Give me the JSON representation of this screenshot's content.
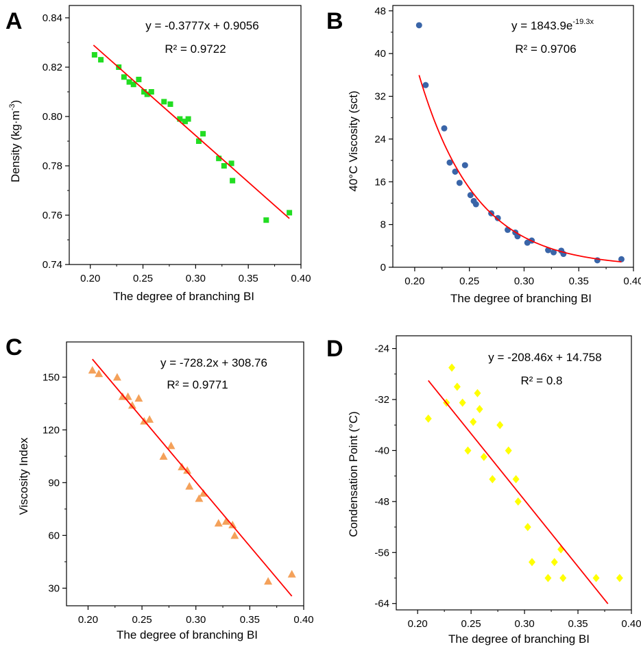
{
  "chart_data": [
    {
      "panel": "A",
      "type": "scatter",
      "xlabel": "The degree of branching BI",
      "ylabel_main": "Density (kg·m",
      "ylabel_sup": "-3",
      "ylabel_close": ")",
      "xlim": [
        0.18,
        0.4
      ],
      "ylim": [
        0.74,
        0.845
      ],
      "xticks": [
        0.2,
        0.25,
        0.3,
        0.35,
        0.4
      ],
      "xtick_labels": [
        "0.20",
        "0.25",
        "0.30",
        "0.35",
        "0.40"
      ],
      "yticks": [
        0.74,
        0.76,
        0.78,
        0.8,
        0.82,
        0.84
      ],
      "ytick_labels": [
        "0.74",
        "0.76",
        "0.78",
        "0.80",
        "0.82",
        "0.84"
      ],
      "marker": "square",
      "color": "#22dd22",
      "fit_color": "#ff0000",
      "equation": "y = -0.3777x + 0.9056",
      "r2": "R² = 0.9722",
      "fit": {
        "kind": "linear",
        "slope": -0.3777,
        "intercept": 0.9056,
        "x_range": [
          0.203,
          0.389
        ]
      },
      "points": [
        {
          "x": 0.204,
          "y": 0.825
        },
        {
          "x": 0.21,
          "y": 0.823
        },
        {
          "x": 0.227,
          "y": 0.82
        },
        {
          "x": 0.232,
          "y": 0.816
        },
        {
          "x": 0.237,
          "y": 0.814
        },
        {
          "x": 0.241,
          "y": 0.813
        },
        {
          "x": 0.246,
          "y": 0.815
        },
        {
          "x": 0.251,
          "y": 0.81
        },
        {
          "x": 0.254,
          "y": 0.809
        },
        {
          "x": 0.258,
          "y": 0.81
        },
        {
          "x": 0.27,
          "y": 0.806
        },
        {
          "x": 0.276,
          "y": 0.805
        },
        {
          "x": 0.285,
          "y": 0.799
        },
        {
          "x": 0.29,
          "y": 0.798
        },
        {
          "x": 0.293,
          "y": 0.799
        },
        {
          "x": 0.303,
          "y": 0.79
        },
        {
          "x": 0.307,
          "y": 0.793
        },
        {
          "x": 0.322,
          "y": 0.783
        },
        {
          "x": 0.327,
          "y": 0.78
        },
        {
          "x": 0.334,
          "y": 0.781
        },
        {
          "x": 0.335,
          "y": 0.774
        },
        {
          "x": 0.367,
          "y": 0.758
        },
        {
          "x": 0.389,
          "y": 0.761
        }
      ]
    },
    {
      "panel": "B",
      "type": "scatter",
      "xlabel": "The degree of branching BI",
      "ylabel_main": "40°C Viscosity (sct)",
      "xlim": [
        0.18,
        0.4
      ],
      "ylim": [
        0,
        49
      ],
      "xticks": [
        0.2,
        0.25,
        0.3,
        0.35,
        0.4
      ],
      "xtick_labels": [
        "0.20",
        "0.25",
        "0.30",
        "0.35",
        "0.40"
      ],
      "yticks": [
        0,
        8,
        16,
        24,
        32,
        40,
        48
      ],
      "ytick_labels": [
        "0",
        "8",
        "16",
        "24",
        "32",
        "40",
        "48"
      ],
      "marker": "circle",
      "color": "#3a65a8",
      "fit_color": "#ff0000",
      "equation": "y = 1843.9e",
      "equation_sup": "-19.3x",
      "r2": "R² = 0.9706",
      "fit": {
        "kind": "exp",
        "a": 1843.9,
        "b": -19.3,
        "x_range": [
          0.204,
          0.389
        ]
      },
      "points": [
        {
          "x": 0.204,
          "y": 45.3
        },
        {
          "x": 0.21,
          "y": 34.1
        },
        {
          "x": 0.227,
          "y": 26.0
        },
        {
          "x": 0.232,
          "y": 19.6
        },
        {
          "x": 0.237,
          "y": 17.9
        },
        {
          "x": 0.241,
          "y": 15.8
        },
        {
          "x": 0.246,
          "y": 19.1
        },
        {
          "x": 0.251,
          "y": 13.5
        },
        {
          "x": 0.254,
          "y": 12.4
        },
        {
          "x": 0.256,
          "y": 11.8
        },
        {
          "x": 0.27,
          "y": 10.1
        },
        {
          "x": 0.276,
          "y": 9.2
        },
        {
          "x": 0.285,
          "y": 7.0
        },
        {
          "x": 0.292,
          "y": 6.5
        },
        {
          "x": 0.294,
          "y": 5.8
        },
        {
          "x": 0.303,
          "y": 4.6
        },
        {
          "x": 0.307,
          "y": 5.0
        },
        {
          "x": 0.322,
          "y": 3.2
        },
        {
          "x": 0.327,
          "y": 2.8
        },
        {
          "x": 0.334,
          "y": 3.1
        },
        {
          "x": 0.336,
          "y": 2.5
        },
        {
          "x": 0.367,
          "y": 1.3
        },
        {
          "x": 0.389,
          "y": 1.5
        }
      ]
    },
    {
      "panel": "C",
      "type": "scatter",
      "xlabel": "The degree of branching BI",
      "ylabel_main": "Viscosity Index",
      "xlim": [
        0.18,
        0.4
      ],
      "ylim": [
        20,
        170
      ],
      "xticks": [
        0.2,
        0.25,
        0.3,
        0.35,
        0.4
      ],
      "xtick_labels": [
        "0.20",
        "0.25",
        "0.30",
        "0.35",
        "0.40"
      ],
      "yticks": [
        30,
        60,
        90,
        120,
        150
      ],
      "ytick_labels": [
        "30",
        "60",
        "90",
        "120",
        "150"
      ],
      "marker": "triangle",
      "color": "#f4a15a",
      "fit_color": "#ff0000",
      "equation": "y = -728.2x + 308.76",
      "r2": "R² = 0.9771",
      "fit": {
        "kind": "linear",
        "slope": -728.2,
        "intercept": 308.76,
        "x_range": [
          0.204,
          0.389
        ]
      },
      "points": [
        {
          "x": 0.204,
          "y": 154
        },
        {
          "x": 0.21,
          "y": 152
        },
        {
          "x": 0.227,
          "y": 150
        },
        {
          "x": 0.232,
          "y": 139
        },
        {
          "x": 0.237,
          "y": 139
        },
        {
          "x": 0.241,
          "y": 134
        },
        {
          "x": 0.247,
          "y": 138
        },
        {
          "x": 0.252,
          "y": 125
        },
        {
          "x": 0.257,
          "y": 126
        },
        {
          "x": 0.27,
          "y": 105
        },
        {
          "x": 0.277,
          "y": 111
        },
        {
          "x": 0.287,
          "y": 99
        },
        {
          "x": 0.292,
          "y": 97
        },
        {
          "x": 0.294,
          "y": 88
        },
        {
          "x": 0.303,
          "y": 81
        },
        {
          "x": 0.307,
          "y": 84
        },
        {
          "x": 0.321,
          "y": 67
        },
        {
          "x": 0.328,
          "y": 68
        },
        {
          "x": 0.334,
          "y": 66
        },
        {
          "x": 0.336,
          "y": 60
        },
        {
          "x": 0.367,
          "y": 34
        },
        {
          "x": 0.389,
          "y": 38
        }
      ]
    },
    {
      "panel": "D",
      "type": "scatter",
      "xlabel": "The degree of branching BI",
      "ylabel_main": "Condensation Point (°C)",
      "xlim": [
        0.18,
        0.4
      ],
      "ylim": [
        -65,
        -22
      ],
      "xticks": [
        0.2,
        0.25,
        0.3,
        0.35,
        0.4
      ],
      "xtick_labels": [
        "0.20",
        "0.25",
        "0.30",
        "0.35",
        "0.40"
      ],
      "yticks": [
        -64,
        -56,
        -48,
        -40,
        -32,
        -24
      ],
      "ytick_labels": [
        "-64",
        "-56",
        "-48",
        "-40",
        "-32",
        "-24"
      ],
      "marker": "diamond",
      "color": "#ffff00",
      "fit_color": "#ff0000",
      "equation": "y = -208.46x + 14.758",
      "r2": "R² = 0.8",
      "fit": {
        "kind": "linear",
        "slope": -208.46,
        "intercept": 14.758,
        "x_range": [
          0.21,
          0.378
        ]
      },
      "points": [
        {
          "x": 0.21,
          "y": -35.0
        },
        {
          "x": 0.227,
          "y": -32.5
        },
        {
          "x": 0.232,
          "y": -27.0
        },
        {
          "x": 0.237,
          "y": -30.0
        },
        {
          "x": 0.242,
          "y": -32.5
        },
        {
          "x": 0.247,
          "y": -40.0
        },
        {
          "x": 0.252,
          "y": -35.5
        },
        {
          "x": 0.256,
          "y": -31.0
        },
        {
          "x": 0.258,
          "y": -33.5
        },
        {
          "x": 0.262,
          "y": -41.0
        },
        {
          "x": 0.27,
          "y": -44.5
        },
        {
          "x": 0.277,
          "y": -36.0
        },
        {
          "x": 0.285,
          "y": -40.0
        },
        {
          "x": 0.292,
          "y": -44.5
        },
        {
          "x": 0.294,
          "y": -48.0
        },
        {
          "x": 0.303,
          "y": -52.0
        },
        {
          "x": 0.307,
          "y": -57.5
        },
        {
          "x": 0.322,
          "y": -60.0
        },
        {
          "x": 0.328,
          "y": -57.5
        },
        {
          "x": 0.334,
          "y": -55.5
        },
        {
          "x": 0.336,
          "y": -60.0
        },
        {
          "x": 0.367,
          "y": -60.0
        },
        {
          "x": 0.389,
          "y": -60.0
        }
      ]
    }
  ]
}
